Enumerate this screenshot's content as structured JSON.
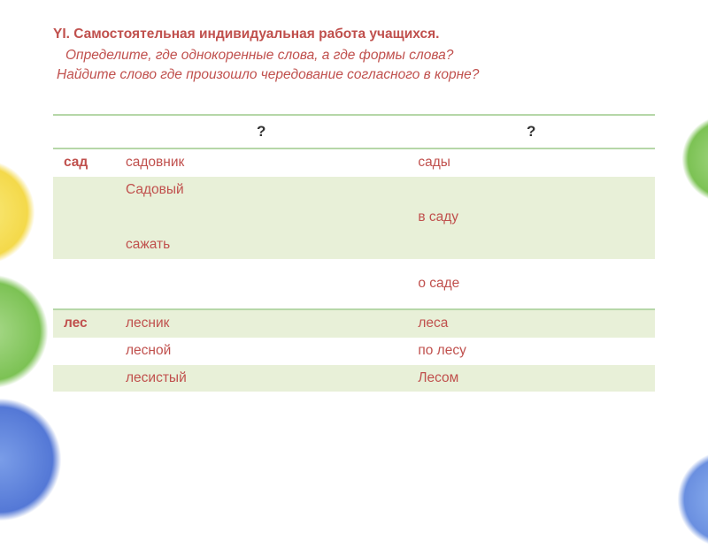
{
  "header": {
    "title": "YI. Самостоятельная индивидуальная работа учащихся.",
    "subtitle1": "Определите, где однокоренные слова, а где формы слова?",
    "subtitle2": "Найдите слово где произошло чередование согласного в корне?"
  },
  "table": {
    "headers": {
      "col1": "",
      "col2": "?",
      "col3": "?"
    },
    "rows": [
      {
        "key": "сад",
        "c2": "садовник",
        "c3": "сады",
        "band": false,
        "sep": true
      },
      {
        "key": "",
        "c2": "Садовый",
        "c3": "",
        "band": true,
        "sep": false
      },
      {
        "key": "",
        "c2": "",
        "c3": "в саду",
        "band": true,
        "sep": false
      },
      {
        "key": "",
        "c2": "сажать",
        "c3": "",
        "band": true,
        "sep": false
      },
      {
        "key": "",
        "c2": "",
        "c3": "",
        "band": false,
        "sep": false
      },
      {
        "key": "",
        "c2": "",
        "c3": "о   саде",
        "band": false,
        "sep": false
      },
      {
        "key": "",
        "c2": "",
        "c3": "",
        "band": false,
        "sep": false
      },
      {
        "key": "лес",
        "c2": "лесник",
        "c3": " леса",
        "band": true,
        "sep": true
      },
      {
        "key": "",
        "c2": "лесной",
        "c3": "по лесу",
        "band": false,
        "sep": false
      },
      {
        "key": "",
        "c2": "лесистый",
        "c3": "Лесом",
        "band": true,
        "sep": false
      }
    ]
  },
  "colors": {
    "accent": "#c0504d",
    "band": "#e8f0d8",
    "border": "#b6d7a8"
  }
}
